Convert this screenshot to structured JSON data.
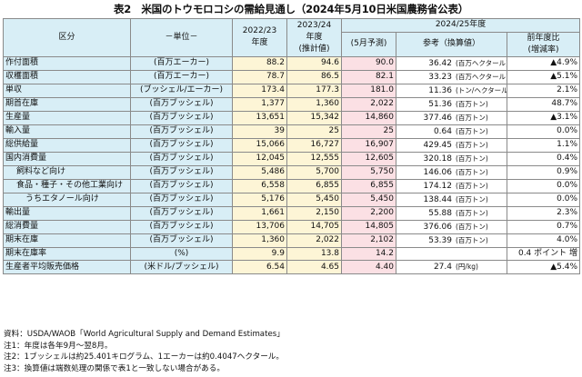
{
  "title": "表2　米国のトウモロコシの需給見通し（2024年5月10日米国農務省公表）",
  "header": {
    "kubun": "区分",
    "unit": "－単位－",
    "y1": [
      "2022/23",
      "年度"
    ],
    "y2": [
      "2023/24",
      "年度",
      "(推計値)"
    ],
    "group": "2024/25年度",
    "y3": "(5月予測)",
    "ref": "参考（換算値）",
    "chg": [
      "前年度比",
      "(増減率)"
    ]
  },
  "rows": [
    {
      "name": "作付面積",
      "unit": "(百万エーカー)",
      "y1": "88.2",
      "y2": "94.6",
      "y3": "90.0",
      "ref": "36.42",
      "ref_unit": "(百万ヘクタール)",
      "chg": "▲4.9%",
      "ind": 0
    },
    {
      "name": "収穫面積",
      "unit": "(百万エーカー)",
      "y1": "78.7",
      "y2": "86.5",
      "y3": "82.1",
      "ref": "33.23",
      "ref_unit": "(百万ヘクタール)",
      "chg": "▲5.1%",
      "ind": 0
    },
    {
      "name": "単収",
      "unit": "(ブッシェル/エーカー)",
      "y1": "173.4",
      "y2": "177.3",
      "y3": "181.0",
      "ref": "11.36",
      "ref_unit": "(トン/ヘクタール)",
      "chg": "2.1%",
      "ind": 0
    },
    {
      "name": "期首在庫",
      "unit": "(百万ブッシェル)",
      "y1": "1,377",
      "y2": "1,360",
      "y3": "2,022",
      "ref": "51.36",
      "ref_unit": "(百万トン)",
      "chg": "48.7%",
      "ind": 0
    },
    {
      "name": "生産量",
      "unit": "(百万ブッシェル)",
      "y1": "13,651",
      "y2": "15,342",
      "y3": "14,860",
      "ref": "377.46",
      "ref_unit": "(百万トン)",
      "chg": "▲3.1%",
      "ind": 0
    },
    {
      "name": "輸入量",
      "unit": "(百万ブッシェル)",
      "y1": "39",
      "y2": "25",
      "y3": "25",
      "ref": "0.64",
      "ref_unit": "(百万トン)",
      "chg": "0.0%",
      "ind": 0
    },
    {
      "name": "総供給量",
      "unit": "(百万ブッシェル)",
      "y1": "15,066",
      "y2": "16,727",
      "y3": "16,907",
      "ref": "429.45",
      "ref_unit": "(百万トン)",
      "chg": "1.1%",
      "ind": 0
    },
    {
      "name": "国内消費量",
      "unit": "(百万ブッシェル)",
      "y1": "12,045",
      "y2": "12,555",
      "y3": "12,605",
      "ref": "320.18",
      "ref_unit": "(百万トン)",
      "chg": "0.4%",
      "ind": 0,
      "sep": true
    },
    {
      "name": "飼料など向け",
      "unit": "(百万ブッシェル)",
      "y1": "5,486",
      "y2": "5,700",
      "y3": "5,750",
      "ref": "146.06",
      "ref_unit": "(百万トン)",
      "chg": "0.9%",
      "ind": 1
    },
    {
      "name": "食品・種子・その他工業向け",
      "unit": "(百万ブッシェル)",
      "y1": "6,558",
      "y2": "6,855",
      "y3": "6,855",
      "ref": "174.12",
      "ref_unit": "(百万トン)",
      "chg": "0.0%",
      "ind": 1
    },
    {
      "name": "うちエタノール向け",
      "unit": "(百万ブッシェル)",
      "y1": "5,176",
      "y2": "5,450",
      "y3": "5,450",
      "ref": "138.44",
      "ref_unit": "(百万トン)",
      "chg": "0.0%",
      "ind": 2
    },
    {
      "name": "輸出量",
      "unit": "(百万ブッシェル)",
      "y1": "1,661",
      "y2": "2,150",
      "y3": "2,200",
      "ref": "55.88",
      "ref_unit": "(百万トン)",
      "chg": "2.3%",
      "ind": 0,
      "sep": true
    },
    {
      "name": "総消費量",
      "unit": "(百万ブッシェル)",
      "y1": "13,706",
      "y2": "14,705",
      "y3": "14,805",
      "ref": "376.06",
      "ref_unit": "(百万トン)",
      "chg": "0.7%",
      "ind": 0
    },
    {
      "name": "期末在庫",
      "unit": "(百万ブッシェル)",
      "y1": "1,360",
      "y2": "2,022",
      "y3": "2,102",
      "ref": "53.39",
      "ref_unit": "(百万トン)",
      "chg": "4.0%",
      "ind": 0,
      "sep": true
    },
    {
      "name": "期末在庫率",
      "unit": "(%)",
      "y1": "9.9",
      "y2": "13.8",
      "y3": "14.2",
      "ref": "",
      "ref_unit": "",
      "chg": "0.4 ポイント 増",
      "ind": 0
    },
    {
      "name": "生産者平均販売価格",
      "unit": "(米ドル/ブッシェル)",
      "y1": "6.54",
      "y2": "4.65",
      "y3": "4.40",
      "ref": "27.4",
      "ref_unit": "(円/kg)",
      "chg": "▲5.4%",
      "ind": 0
    }
  ],
  "notes": [
    "資料：USDA/WAOB「World Agricultural Supply and Demand Estimates」",
    "注1：年度は各年9月～翌8月。",
    "注2：1ブッシェルは約25.401キログラム、1エーカーは約0.4047ヘクタール。",
    "注3：換算値は端数処理の関係で表1と一致しない場合がある。"
  ]
}
